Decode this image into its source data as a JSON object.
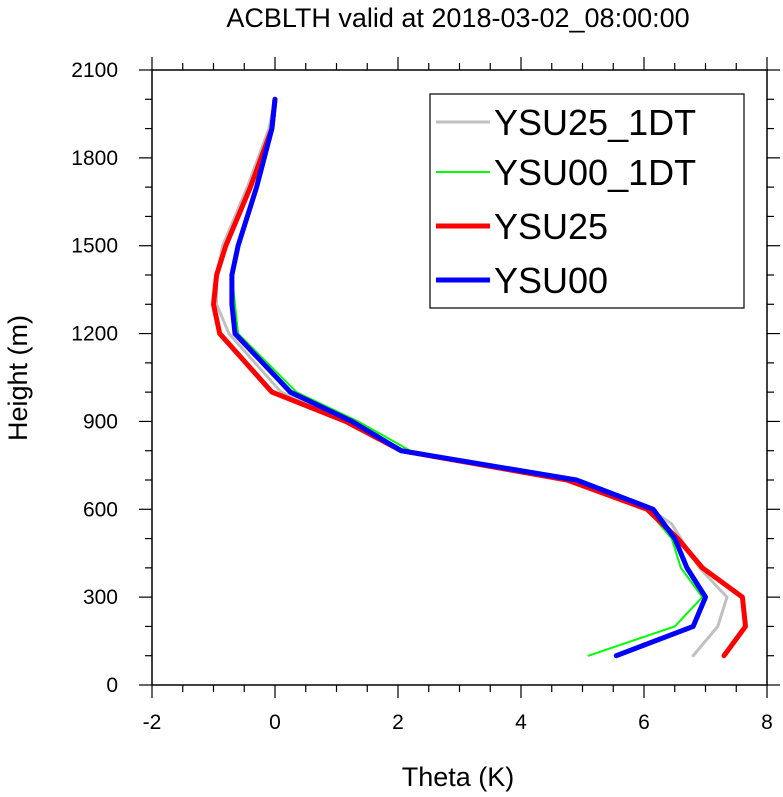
{
  "chart_data": {
    "type": "line",
    "title": "ACBLTH valid at 2018-03-02_08:00:00",
    "xlabel": "Theta (K)",
    "ylabel": "Height (m)",
    "xlim": [
      -2,
      8
    ],
    "ylim": [
      0,
      2100
    ],
    "xticks": [
      "-2",
      "0",
      "2",
      "4",
      "6",
      "8"
    ],
    "yticks": [
      "0",
      "300",
      "600",
      "900",
      "1200",
      "1500",
      "1800",
      "2100"
    ],
    "legend_position": "top-right",
    "series": [
      {
        "name": "YSU25_1DT",
        "color": "#c0c0c0",
        "x": [
          6.8,
          7.2,
          7.35,
          6.9,
          6.6,
          6.45,
          6.1,
          4.8,
          2.1,
          1.2,
          0.1,
          -0.75,
          -0.95,
          -0.95,
          -0.85,
          -0.45,
          -0.1,
          0.0
        ],
        "y": [
          100,
          200,
          300,
          400,
          500,
          550,
          600,
          700,
          800,
          900,
          1000,
          1200,
          1300,
          1400,
          1500,
          1700,
          1900,
          2000
        ]
      },
      {
        "name": "YSU00_1DT",
        "color": "#00ff00",
        "x": [
          5.1,
          6.5,
          6.95,
          6.6,
          6.45,
          6.05,
          4.9,
          2.2,
          1.35,
          0.35,
          -0.6,
          -0.65,
          -0.7,
          -0.6,
          -0.3,
          -0.05,
          0.0
        ],
        "y": [
          100,
          200,
          300,
          400,
          500,
          600,
          700,
          800,
          900,
          1000,
          1200,
          1300,
          1400,
          1500,
          1700,
          1900,
          2000
        ]
      },
      {
        "name": "YSU25",
        "color": "#ff0000",
        "x": [
          7.3,
          7.65,
          7.6,
          6.95,
          6.55,
          6.05,
          4.75,
          2.05,
          1.15,
          -0.05,
          -0.9,
          -1.0,
          -0.95,
          -0.8,
          -0.4,
          -0.05,
          0.0
        ],
        "y": [
          100,
          200,
          300,
          400,
          500,
          600,
          700,
          800,
          900,
          1000,
          1200,
          1300,
          1400,
          1500,
          1700,
          1900,
          2000
        ]
      },
      {
        "name": "YSU00",
        "color": "#0000ff",
        "x": [
          5.55,
          6.8,
          7.0,
          6.7,
          6.5,
          6.15,
          4.9,
          2.05,
          1.25,
          0.25,
          -0.65,
          -0.7,
          -0.7,
          -0.6,
          -0.3,
          -0.05,
          0.0
        ],
        "y": [
          100,
          200,
          300,
          400,
          500,
          600,
          700,
          800,
          900,
          1000,
          1200,
          1300,
          1400,
          1500,
          1700,
          1900,
          2000
        ]
      }
    ],
    "legend_order": [
      "YSU25_1DT",
      "YSU00_1DT",
      "YSU25",
      "YSU00"
    ],
    "line_widths": [
      3,
      2,
      5,
      5
    ]
  }
}
